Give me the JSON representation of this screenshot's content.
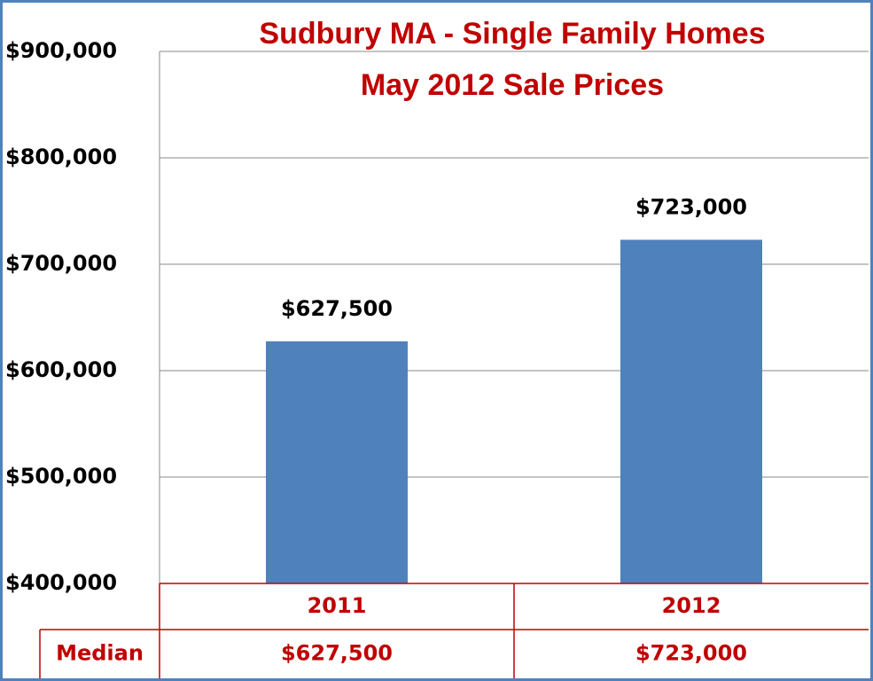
{
  "chart_data": {
    "type": "bar",
    "title": "Sudbury MA - Single Family Homes",
    "subtitle": "May 2012 Sale Prices",
    "categories": [
      "2011",
      "2012"
    ],
    "series": [
      {
        "name": "Median",
        "color": "#4f81bd",
        "values": [
          627500,
          723000
        ],
        "value_labels": [
          "$627,500",
          "$723,000"
        ]
      }
    ],
    "ylim": [
      400000,
      900000
    ],
    "yticks": [
      {
        "value": 400000,
        "label": "$400,000"
      },
      {
        "value": 500000,
        "label": "$500,000"
      },
      {
        "value": 600000,
        "label": "$600,000"
      },
      {
        "value": 700000,
        "label": "$700,000"
      },
      {
        "value": 800000,
        "label": "$800,000"
      },
      {
        "value": 900000,
        "label": "$900,000"
      }
    ],
    "grid": true,
    "data_table": true
  }
}
